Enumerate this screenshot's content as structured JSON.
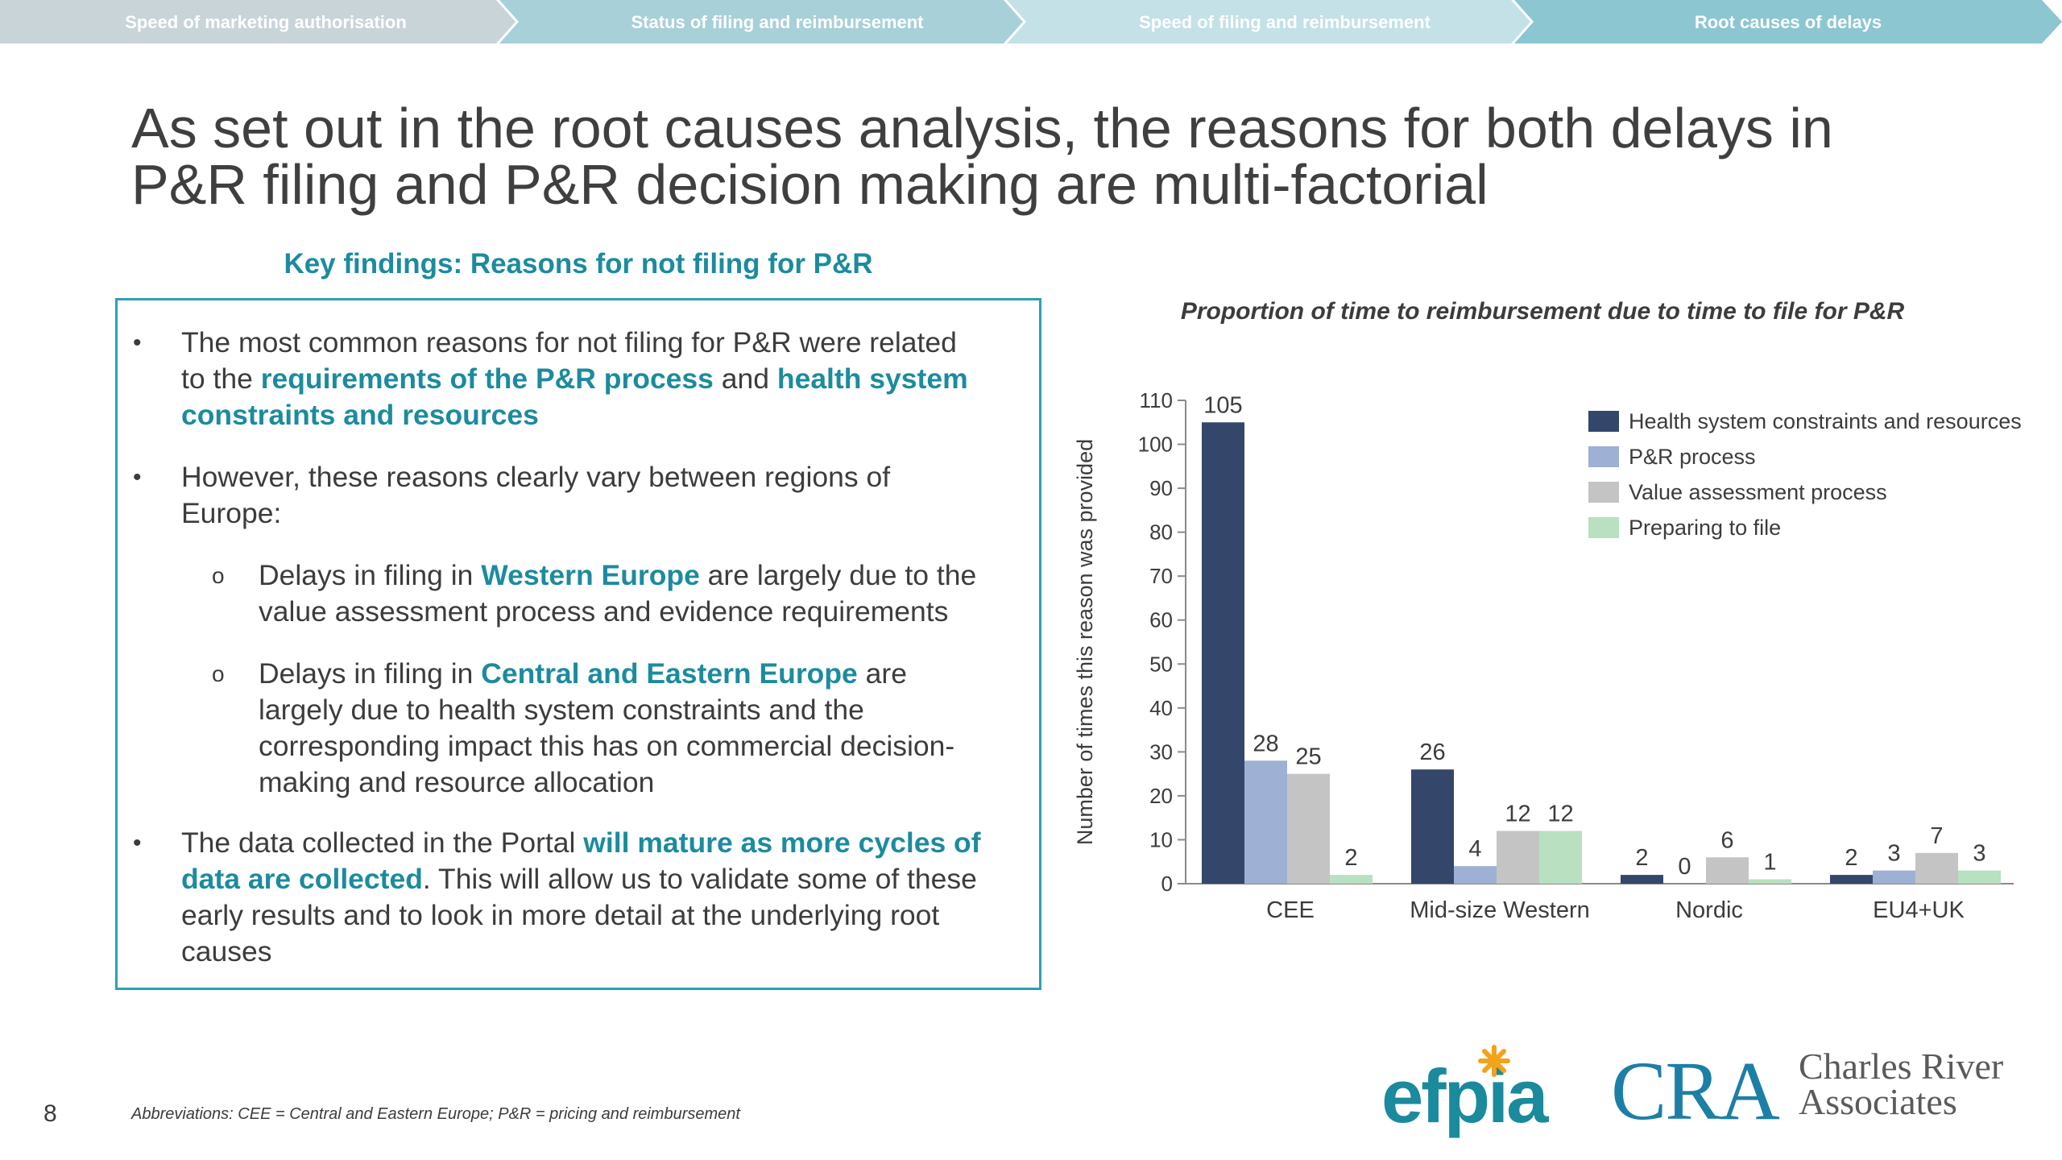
{
  "nav": {
    "items": [
      {
        "label": "Speed of marketing authorisation",
        "color": "#c9d4d8"
      },
      {
        "label": "Status of filing and reimbursement",
        "color": "#a8d0d8"
      },
      {
        "label": "Speed of filing and reimbursement",
        "color": "#c3e1e6"
      },
      {
        "label": "Root causes of delays",
        "color": "#8cc6d1"
      }
    ]
  },
  "title": {
    "line1": "As set out in the root causes analysis, the reasons for both delays in",
    "line2": "P&R filing and P&R decision making are multi-factorial"
  },
  "key_findings": {
    "heading": "Key findings: Reasons for not filing for P&R",
    "bullet_mark": "•",
    "sub_mark": "o",
    "b1": {
      "l1": "The most common reasons for not filing for P&R were related",
      "l2a": "to the ",
      "l2b": "requirements of the P&R process",
      "l2c": " and ",
      "l2d": "health system",
      "l3": "constraints and resources"
    },
    "b2": {
      "l1": "However, these reasons clearly vary between regions of",
      "l2": "Europe:"
    },
    "s1": {
      "l1a": "Delays in filing in ",
      "l1b": "Western Europe",
      "l1c": " are largely due to the",
      "l2": "value assessment process and evidence requirements"
    },
    "s2": {
      "l1a": "Delays in filing in ",
      "l1b": "Central and Eastern Europe",
      "l1c": " are",
      "l2": "largely due to health system constraints and the",
      "l3": "corresponding impact this has on commercial decision-",
      "l4": "making and resource allocation"
    },
    "b3": {
      "l1a": "The data collected in the Portal ",
      "l1b": "will mature as more cycles of",
      "l2a": "data are collected",
      "l2b": ". This will allow us to validate some of these",
      "l3": "early results and to look in more detail at the underlying root",
      "l4": "causes"
    }
  },
  "chart_data": {
    "type": "bar",
    "title": "Proportion of time to reimbursement due to time to file for P&R",
    "ylabel": "Number of times this reason was provided",
    "xlabel": "",
    "ylim": [
      0,
      110
    ],
    "yticks": [
      0,
      10,
      20,
      30,
      40,
      50,
      60,
      70,
      80,
      90,
      100,
      110
    ],
    "grid": false,
    "legend_position": "top-right",
    "categories": [
      "CEE",
      "Mid-size Western",
      "Nordic",
      "EU4+UK"
    ],
    "series": [
      {
        "name": "Health system constraints and resources",
        "color": "#34476a",
        "values": [
          105,
          26,
          2,
          2
        ]
      },
      {
        "name": "P&R process",
        "color": "#9eb0d3",
        "values": [
          28,
          4,
          0,
          3
        ]
      },
      {
        "name": "Value assessment process",
        "color": "#c4c4c4",
        "values": [
          25,
          12,
          6,
          7
        ]
      },
      {
        "name": "Preparing to file",
        "color": "#b9e0c0",
        "values": [
          2,
          12,
          1,
          3
        ]
      }
    ]
  },
  "footer": {
    "page_number": "8",
    "abbreviations": "Abbreviations: CEE = Central and Eastern Europe; P&R = pricing and reimbursement",
    "efpia_logo_text": "efpia",
    "cra_logo_letters": "CRA",
    "cra_name_line1": "Charles River",
    "cra_name_line2": "Associates"
  }
}
